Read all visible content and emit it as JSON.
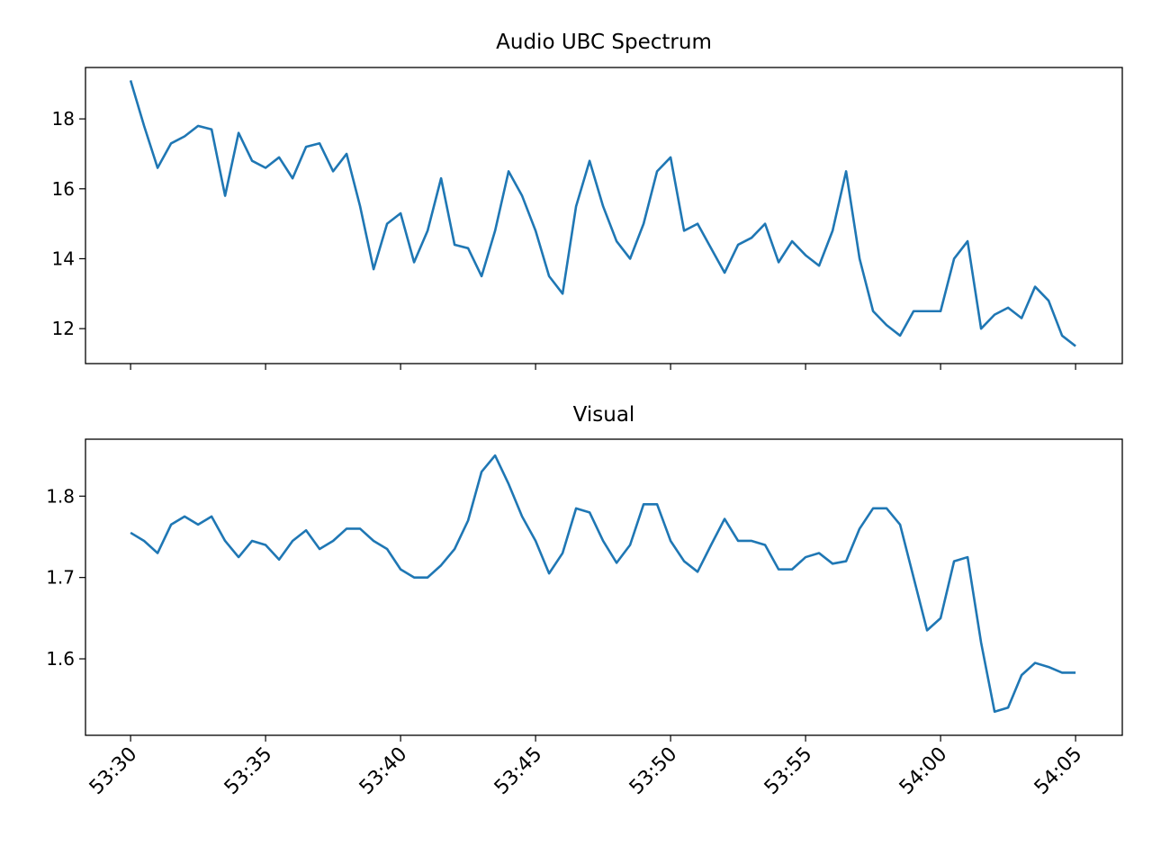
{
  "chart_data": [
    {
      "type": "line",
      "title": "Audio UBC Spectrum",
      "x": [
        3210,
        3210.5,
        3211,
        3211.5,
        3212,
        3212.5,
        3213,
        3213.5,
        3214,
        3214.5,
        3215,
        3215.5,
        3216,
        3216.5,
        3217,
        3217.5,
        3218,
        3218.5,
        3219,
        3219.5,
        3220,
        3220.5,
        3221,
        3221.5,
        3222,
        3222.5,
        3223,
        3223.5,
        3224,
        3224.5,
        3225,
        3225.5,
        3226,
        3226.5,
        3227,
        3227.5,
        3228,
        3228.5,
        3229,
        3229.5,
        3230,
        3230.5,
        3231,
        3231.5,
        3232,
        3232.5,
        3233,
        3233.5,
        3234,
        3234.5,
        3235,
        3235.5,
        3236,
        3236.5,
        3237,
        3237.5,
        3238,
        3238.5,
        3239,
        3239.5,
        3240,
        3240.5,
        3241,
        3241.5,
        3242,
        3242.5,
        3243,
        3243.5,
        3244,
        3244.5,
        3245
      ],
      "series": [
        {
          "color": "#1f77b4",
          "values": [
            19.1,
            17.8,
            16.6,
            17.3,
            17.5,
            17.8,
            17.7,
            15.8,
            17.6,
            16.8,
            16.6,
            16.9,
            16.3,
            17.2,
            17.3,
            16.5,
            17.0,
            15.5,
            13.7,
            15.0,
            15.3,
            13.9,
            14.8,
            16.3,
            14.4,
            14.3,
            13.5,
            14.8,
            16.5,
            15.8,
            14.8,
            13.5,
            13.0,
            15.5,
            16.8,
            15.5,
            14.5,
            14.0,
            15.0,
            16.5,
            16.9,
            14.8,
            15.0,
            14.3,
            13.6,
            14.4,
            14.6,
            15.0,
            13.9,
            14.5,
            14.1,
            13.8,
            14.8,
            16.5,
            14.0,
            12.5,
            12.1,
            11.8,
            12.5,
            12.5,
            12.5,
            14.0,
            14.5,
            12.0,
            12.4,
            12.6,
            12.3,
            13.2,
            12.8,
            11.8,
            11.5
          ]
        }
      ],
      "xlim": [
        3208.33,
        3246.73
      ],
      "xticks": [
        3210,
        3215,
        3220,
        3225,
        3230,
        3235,
        3240,
        3245
      ],
      "ylim": [
        11.0,
        19.47
      ],
      "yticks": [
        12,
        14,
        16,
        18
      ]
    },
    {
      "type": "line",
      "title": "Visual",
      "x": [
        3210,
        3210.5,
        3211,
        3211.5,
        3212,
        3212.5,
        3213,
        3213.5,
        3214,
        3214.5,
        3215,
        3215.5,
        3216,
        3216.5,
        3217,
        3217.5,
        3218,
        3218.5,
        3219,
        3219.5,
        3220,
        3220.5,
        3221,
        3221.5,
        3222,
        3222.5,
        3223,
        3223.5,
        3224,
        3224.5,
        3225,
        3225.5,
        3226,
        3226.5,
        3227,
        3227.5,
        3228,
        3228.5,
        3229,
        3229.5,
        3230,
        3230.5,
        3231,
        3231.5,
        3232,
        3232.5,
        3233,
        3233.5,
        3234,
        3234.5,
        3235,
        3235.5,
        3236,
        3236.5,
        3237,
        3237.5,
        3238,
        3238.5,
        3239,
        3239.5,
        3240,
        3240.5,
        3241,
        3241.5,
        3242,
        3242.5,
        3243,
        3243.5,
        3244,
        3244.5,
        3245
      ],
      "series": [
        {
          "color": "#1f77b4",
          "values": [
            1.755,
            1.745,
            1.73,
            1.765,
            1.775,
            1.765,
            1.775,
            1.745,
            1.725,
            1.745,
            1.74,
            1.722,
            1.745,
            1.758,
            1.735,
            1.745,
            1.76,
            1.76,
            1.745,
            1.735,
            1.71,
            1.7,
            1.7,
            1.715,
            1.735,
            1.77,
            1.83,
            1.85,
            1.815,
            1.775,
            1.745,
            1.705,
            1.73,
            1.785,
            1.78,
            1.745,
            1.718,
            1.74,
            1.79,
            1.79,
            1.745,
            1.72,
            1.707,
            1.74,
            1.772,
            1.745,
            1.745,
            1.74,
            1.71,
            1.71,
            1.725,
            1.73,
            1.717,
            1.72,
            1.76,
            1.785,
            1.785,
            1.765,
            1.7,
            1.635,
            1.65,
            1.72,
            1.725,
            1.62,
            1.535,
            1.54,
            1.58,
            1.595,
            1.59,
            1.583,
            1.583
          ]
        }
      ],
      "xlim": [
        3208.33,
        3246.73
      ],
      "xticks": [
        {
          "value": 3210,
          "label": "53:30"
        },
        {
          "value": 3215,
          "label": "53:35"
        },
        {
          "value": 3220,
          "label": "53:40"
        },
        {
          "value": 3225,
          "label": "53:45"
        },
        {
          "value": 3230,
          "label": "53:50"
        },
        {
          "value": 3235,
          "label": "53:55"
        },
        {
          "value": 3240,
          "label": "54:00"
        },
        {
          "value": 3245,
          "label": "54:05"
        }
      ],
      "ylim": [
        1.506,
        1.87
      ],
      "yticks": [
        1.6,
        1.7,
        1.8
      ]
    }
  ]
}
